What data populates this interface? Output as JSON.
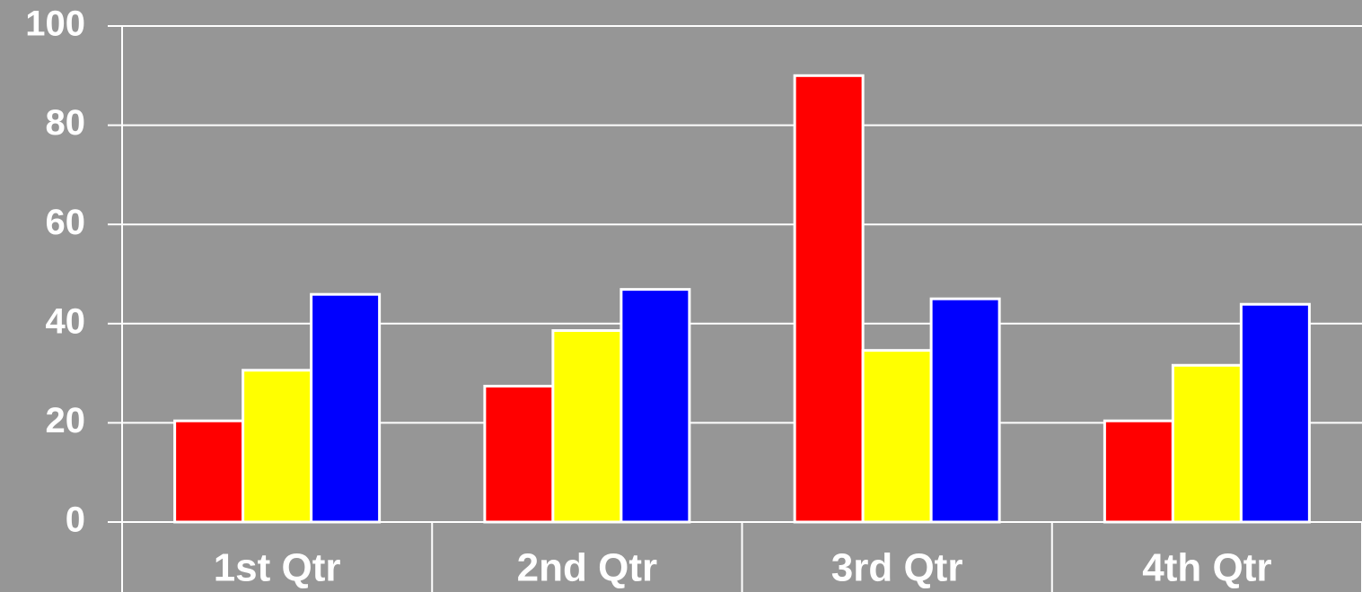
{
  "chart_data": {
    "type": "bar",
    "categories": [
      "1st Qtr",
      "2nd Qtr",
      "3rd Qtr",
      "4th Qtr"
    ],
    "series": [
      {
        "color": "#ff0000",
        "values": [
          20.4,
          27.4,
          90,
          20.4
        ]
      },
      {
        "color": "#ffff00",
        "values": [
          30.6,
          38.6,
          34.6,
          31.6
        ]
      },
      {
        "color": "#0000ff",
        "values": [
          45.9,
          46.9,
          45,
          43.9
        ]
      }
    ],
    "ylim": [
      0,
      100
    ],
    "yticks": [
      0,
      20,
      40,
      60,
      80,
      100
    ],
    "grid": true,
    "background": "#969696"
  }
}
